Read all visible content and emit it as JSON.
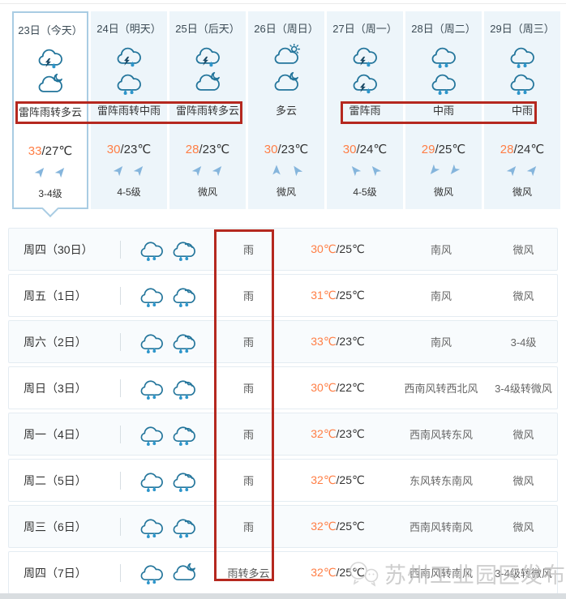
{
  "colors": {
    "highlight_red": "#b5281f",
    "temp_high_orange": "#ff7e45",
    "icon_teal": "#23759b",
    "drop_blue": "#2e96cb",
    "arrow_blue": "#85b5dc",
    "selected_border": "#a9cce3",
    "column_bg": "#edf5fa"
  },
  "forecast": {
    "columns": [
      {
        "date": "23日（今天）",
        "icon_day": "thunderstorm",
        "icon_night": "cloud-moon",
        "cond": "雷阵雨转多云",
        "temp_hi": "33",
        "temp_rest": "/27℃",
        "wind_rot": [
          40,
          40
        ],
        "level": "3-4级"
      },
      {
        "date": "24日（明天）",
        "icon_day": "thunderstorm",
        "icon_night": "rain",
        "cond": "雷阵雨转中雨",
        "temp_hi": "30",
        "temp_rest": "/23℃",
        "wind_rot": [
          40,
          40
        ],
        "level": "4-5级"
      },
      {
        "date": "25日（后天）",
        "icon_day": "thunderstorm",
        "icon_night": "cloud-moon",
        "cond": "雷阵雨转多云",
        "temp_hi": "28",
        "temp_rest": "/23℃",
        "wind_rot": [
          40,
          40
        ],
        "level": "微风"
      },
      {
        "date": "26日（周日）",
        "icon_day": "cloud-sun",
        "icon_night": "cloud-moon",
        "cond": "多云",
        "temp_hi": "30",
        "temp_rest": "/23℃",
        "wind_rot": [
          0,
          -35
        ],
        "level": "微风"
      },
      {
        "date": "27日（周一）",
        "icon_day": "thunderstorm",
        "icon_night": "thunderstorm",
        "cond": "雷阵雨",
        "temp_hi": "30",
        "temp_rest": "/24℃",
        "wind_rot": [
          -40,
          -40
        ],
        "level": "4-5级"
      },
      {
        "date": "28日（周二）",
        "icon_day": "rain",
        "icon_night": "rain",
        "cond": "中雨",
        "temp_hi": "29",
        "temp_rest": "/25℃",
        "wind_rot": [
          -140,
          -140
        ],
        "level": "微风"
      },
      {
        "date": "29日（周三）",
        "icon_day": "rain",
        "icon_night": "rain",
        "cond": "中雨",
        "temp_hi": "28",
        "temp_rest": "/24℃",
        "wind_rot": [
          40,
          40
        ],
        "level": "微风"
      }
    ]
  },
  "daily_list": {
    "rows": [
      {
        "day": "周四（30日）",
        "icon1": "rain",
        "icon2": "rain-heavy",
        "cond": "雨",
        "temp_hi": "30℃",
        "temp_rest": "/25℃",
        "wind": "南风",
        "level": "微风"
      },
      {
        "day": "周五（1日）",
        "icon1": "rain",
        "icon2": "rain-heavy",
        "cond": "雨",
        "temp_hi": "31℃",
        "temp_rest": "/25℃",
        "wind": "南风",
        "level": "微风"
      },
      {
        "day": "周六（2日）",
        "icon1": "rain",
        "icon2": "rain-heavy",
        "cond": "雨",
        "temp_hi": "33℃",
        "temp_rest": "/23℃",
        "wind": "南风",
        "level": "3-4级"
      },
      {
        "day": "周日（3日）",
        "icon1": "rain",
        "icon2": "rain-heavy",
        "cond": "雨",
        "temp_hi": "30℃",
        "temp_rest": "/22℃",
        "wind": "西南风转西北风",
        "level": "3-4级转微风"
      },
      {
        "day": "周一（4日）",
        "icon1": "rain",
        "icon2": "rain-heavy",
        "cond": "雨",
        "temp_hi": "32℃",
        "temp_rest": "/23℃",
        "wind": "西南风转东风",
        "level": "微风"
      },
      {
        "day": "周二（5日）",
        "icon1": "rain",
        "icon2": "rain-heavy",
        "cond": "雨",
        "temp_hi": "32℃",
        "temp_rest": "/25℃",
        "wind": "东风转东南风",
        "level": "微风"
      },
      {
        "day": "周三（6日）",
        "icon1": "rain",
        "icon2": "rain-heavy",
        "cond": "雨",
        "temp_hi": "32℃",
        "temp_rest": "/25℃",
        "wind": "西南风转南风",
        "level": "微风"
      },
      {
        "day": "周四（7日）",
        "icon1": "rain",
        "icon2": "cloud-moon",
        "cond": "雨转多云",
        "temp_hi": "32℃",
        "temp_rest": "/25℃",
        "wind": "西南风转南风",
        "level": "3-4级转微风"
      }
    ]
  },
  "watermark": {
    "icon": "wechat-bubbles-icon",
    "text": "苏州工业园区发布"
  }
}
